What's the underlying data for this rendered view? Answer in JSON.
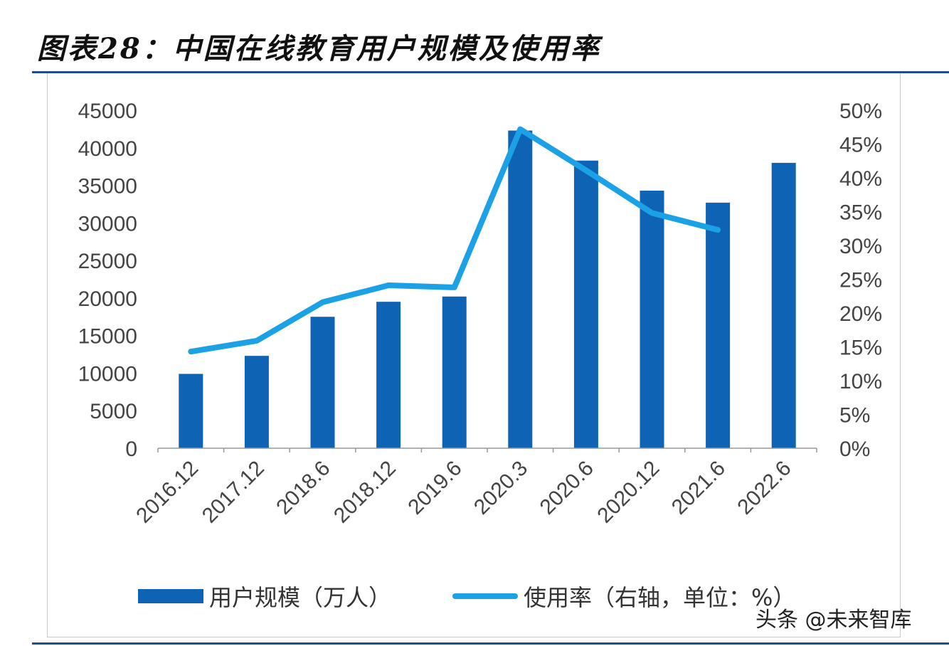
{
  "title": "图表28：中国在线教育用户规模及使用率",
  "watermark": "头条 @未来智库",
  "colors": {
    "bar": "#0e63b4",
    "line": "#1ba1e6",
    "rule": "#1f4e8c"
  },
  "chart_data": {
    "type": "bar+line",
    "title": "图表28：中国在线教育用户规模及使用率",
    "categories": [
      "2016.12",
      "2017.12",
      "2018.6",
      "2018.12",
      "2019.6",
      "2020.3",
      "2020.6",
      "2020.12",
      "2021.6",
      "2022.6"
    ],
    "series": [
      {
        "name": "用户规模（万人）",
        "type": "bar",
        "axis": "left",
        "values": [
          9900,
          12300,
          17500,
          19500,
          20200,
          42300,
          38300,
          34300,
          32700,
          38000
        ]
      },
      {
        "name": "使用率（右轴，单位：%）",
        "type": "line",
        "axis": "right",
        "values": [
          14.3,
          15.9,
          21.6,
          24.1,
          23.8,
          47.2,
          41.1,
          34.8,
          32.3,
          null
        ]
      }
    ],
    "left_axis": {
      "ylim": [
        0,
        45000
      ],
      "ticks": [
        "0",
        "5000",
        "10000",
        "15000",
        "20000",
        "25000",
        "30000",
        "35000",
        "40000",
        "45000"
      ]
    },
    "right_axis": {
      "ylim": [
        0,
        50
      ],
      "ticks": [
        "0%",
        "5%",
        "10%",
        "15%",
        "20%",
        "25%",
        "30%",
        "35%",
        "40%",
        "45%",
        "50%"
      ]
    },
    "grid": false,
    "legend": "bottom"
  }
}
